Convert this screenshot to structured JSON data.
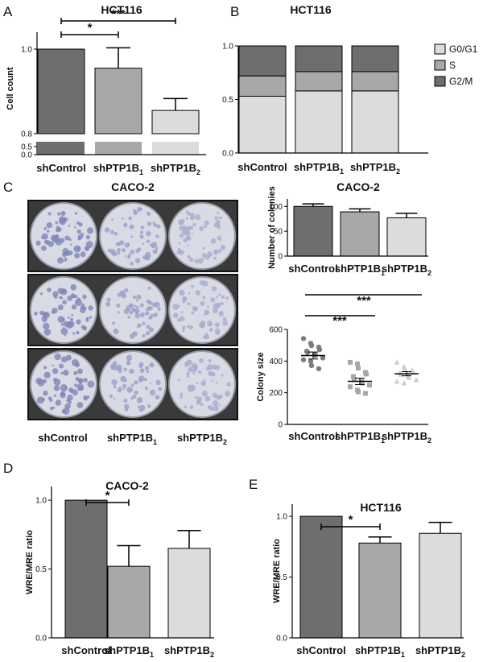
{
  "panels": {
    "A": {
      "letter": "A"
    },
    "B": {
      "letter": "B"
    },
    "C": {
      "letter": "C"
    },
    "D": {
      "letter": "D"
    },
    "E": {
      "letter": "E"
    }
  },
  "photo": {
    "title": "CACO-2",
    "labels": [
      "shControl",
      "shPTP1B",
      "shPTP1B"
    ],
    "subscripts": [
      "",
      "1",
      "2"
    ],
    "dish_tints": [
      "#7f86b8",
      "#9aa0c8",
      "#a8acd0"
    ]
  },
  "colors": {
    "dark": "#6e6e6e",
    "mid": "#a8a8a8",
    "light": "#dcdcdc"
  },
  "chart_data": [
    {
      "id": "A",
      "type": "bar",
      "title": "HCT116",
      "ylabel": "Cell count",
      "categories": [
        "shControl",
        "shPTP1B",
        "shPTP1B"
      ],
      "subscripts": [
        "",
        "1",
        "2"
      ],
      "values": [
        1.0,
        0.955,
        0.855
      ],
      "errors": [
        0,
        0.048,
        0.028
      ],
      "yaxis": "broken",
      "yticks_low": [
        "0.0",
        "0.5"
      ],
      "yticks_high": [
        "0.8",
        "1.0"
      ],
      "significance": [
        {
          "from": 0,
          "to": 1,
          "label": "*"
        },
        {
          "from": 0,
          "to": 2,
          "label": "***"
        }
      ]
    },
    {
      "id": "B",
      "type": "stacked_bar",
      "title": "HCT116",
      "categories": [
        "shControl",
        "shPTP1B",
        "shPTP1B"
      ],
      "subscripts": [
        "",
        "1",
        "2"
      ],
      "ylim": [
        0,
        1
      ],
      "yticks": [
        "0.0",
        "0.5",
        "1.0"
      ],
      "series": [
        {
          "name": "G0/G1",
          "values": [
            0.53,
            0.58,
            0.58
          ]
        },
        {
          "name": "S",
          "values": [
            0.19,
            0.18,
            0.18
          ]
        },
        {
          "name": "G2/M",
          "values": [
            0.28,
            0.24,
            0.24
          ]
        }
      ]
    },
    {
      "id": "C1",
      "type": "bar",
      "title": "CACO-2",
      "ylabel": "Number of colonies",
      "categories": [
        "shControl",
        "shPTP1B",
        "shPTP1B"
      ],
      "subscripts": [
        "",
        "1",
        "2"
      ],
      "ylim": [
        0,
        115
      ],
      "yticks": [
        "0",
        "50",
        "100"
      ],
      "values": [
        100,
        89,
        77
      ],
      "errors": [
        5,
        6,
        9
      ]
    },
    {
      "id": "C2",
      "type": "scatter",
      "ylabel": "Colony size",
      "categories": [
        "shControl",
        "shPTP1B",
        "shPTP1B"
      ],
      "subscripts": [
        "",
        "1",
        "2"
      ],
      "ylim": [
        0,
        600
      ],
      "yticks": [
        "0",
        "200",
        "400",
        "600"
      ],
      "means": [
        435,
        272,
        320
      ],
      "sems": [
        22,
        20,
        13
      ],
      "points": [
        [
          542,
          512,
          498,
          488,
          472,
          462,
          455,
          442,
          436,
          420,
          408,
          398,
          372,
          352
        ],
        [
          392,
          382,
          356,
          328,
          318,
          302,
          282,
          272,
          262,
          248,
          238,
          216,
          206,
          196
        ],
        [
          392,
          366,
          352,
          342,
          332,
          326,
          316,
          308,
          296,
          282,
          272,
          262
        ]
      ],
      "significance": [
        {
          "from": 0,
          "to": 1,
          "label": "***"
        },
        {
          "from": 0,
          "to": 2,
          "label": "***"
        }
      ]
    },
    {
      "id": "D",
      "type": "bar",
      "title": "CACO-2",
      "ylabel": "WRE/MRE ratio",
      "categories": [
        "shControl",
        "shPTP1B",
        "shPTP1B"
      ],
      "subscripts": [
        "",
        "1",
        "2"
      ],
      "ylim": [
        0,
        1.1
      ],
      "yticks": [
        "0.0",
        "0.5",
        "1.0"
      ],
      "values": [
        1.0,
        0.52,
        0.65
      ],
      "errors": [
        0,
        0.15,
        0.13
      ],
      "significance": [
        {
          "from": 0,
          "to": 1,
          "label": "*"
        }
      ]
    },
    {
      "id": "E",
      "type": "bar",
      "title": "HCT116",
      "ylabel": "WRE/MRE ratio",
      "categories": [
        "shControl",
        "shPTP1B",
        "shPTP1B"
      ],
      "subscripts": [
        "",
        "1",
        "2"
      ],
      "ylim": [
        0,
        1.1
      ],
      "yticks": [
        "0.0",
        "0.5",
        "1.0"
      ],
      "values": [
        1.0,
        0.78,
        0.86
      ],
      "errors": [
        0,
        0.05,
        0.09
      ],
      "significance": [
        {
          "from": 0,
          "to": 1,
          "label": "*"
        }
      ]
    }
  ]
}
